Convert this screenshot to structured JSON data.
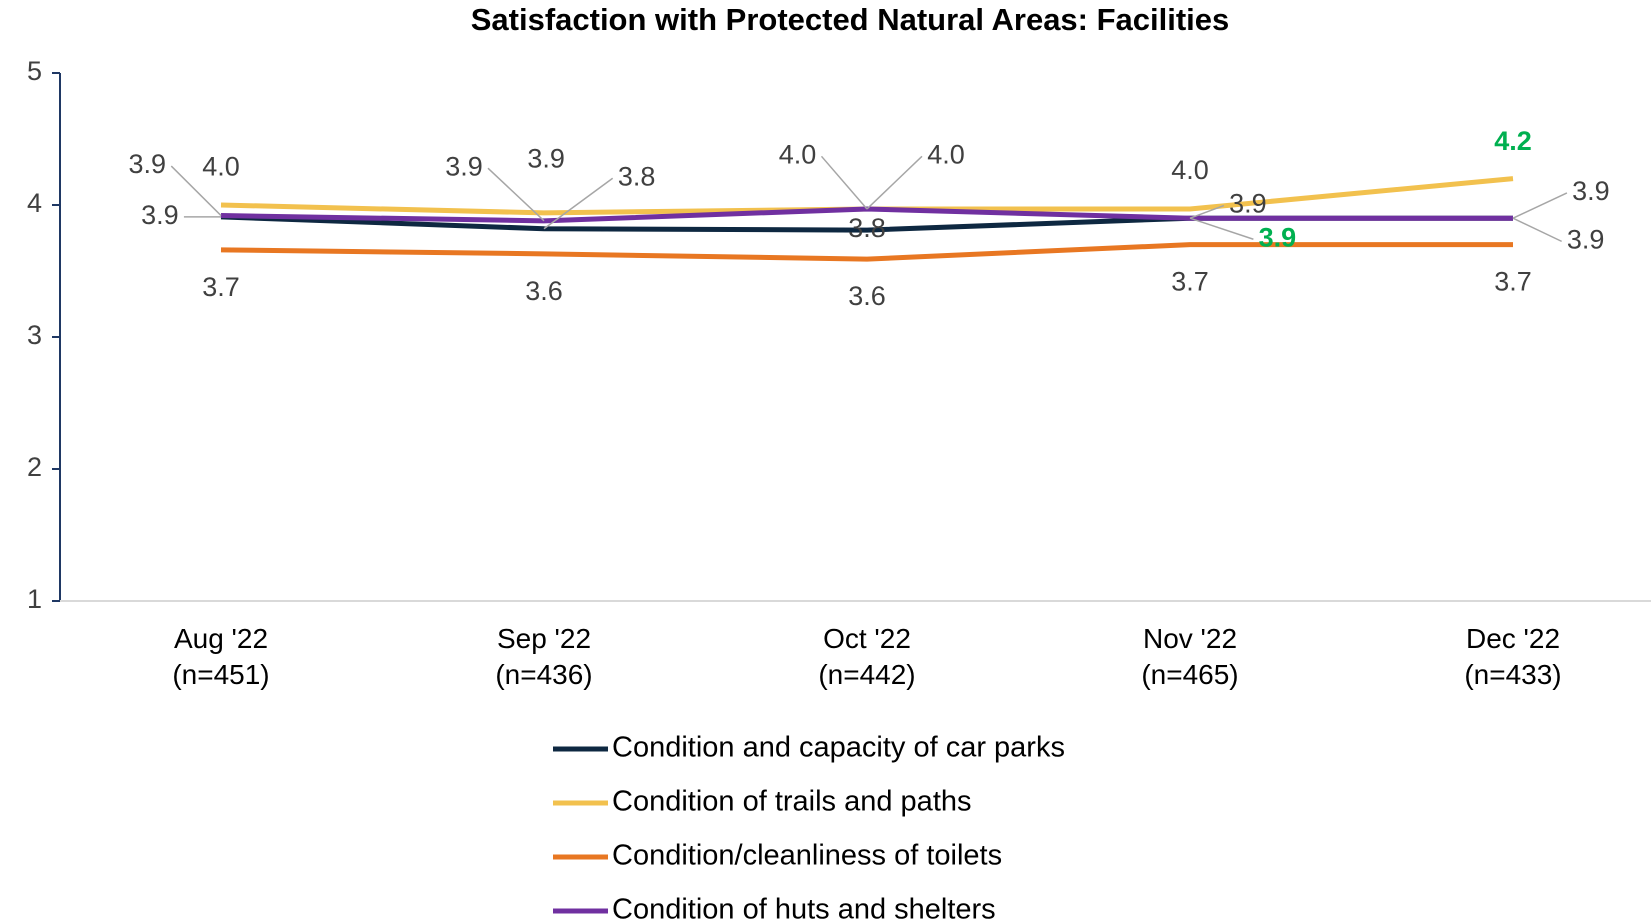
{
  "chart_data": {
    "type": "line",
    "title": "Satisfaction with Protected Natural Areas: Facilities",
    "categories": [
      "Aug '22\n(n=451)",
      "Sep '22\n(n=436)",
      "Oct '22\n(n=442)",
      "Nov '22\n(n=465)",
      "Dec '22\n(n=433)"
    ],
    "series": [
      {
        "name": "Condition and capacity of car parks",
        "color": "#0e2841",
        "values": [
          3.91,
          3.82,
          3.81,
          3.9,
          3.9
        ],
        "value_labels": [
          "3.9",
          "3.8",
          "3.8",
          "3.9",
          "3.9"
        ],
        "highlight": [
          3
        ]
      },
      {
        "name": "Condition of trails and paths",
        "color": "#f2c14e",
        "values": [
          4.0,
          3.94,
          3.97,
          3.97,
          4.2
        ],
        "value_labels": [
          "4.0",
          "3.9",
          "4.0",
          "4.0",
          "4.2"
        ],
        "highlight": [
          4
        ]
      },
      {
        "name": "Condition/cleanliness of toilets",
        "color": "#e87722",
        "values": [
          3.66,
          3.63,
          3.59,
          3.7,
          3.7
        ],
        "value_labels": [
          "3.7",
          "3.6",
          "3.6",
          "3.7",
          "3.7"
        ],
        "highlight": []
      },
      {
        "name": "Condition of huts and shelters",
        "color": "#7030a0",
        "values": [
          3.92,
          3.88,
          3.97,
          3.9,
          3.9
        ],
        "value_labels": [
          "3.9",
          "3.9",
          "4.0",
          "3.9",
          "3.9"
        ],
        "highlight": []
      }
    ],
    "highlight_color": "#00b050",
    "ylim": [
      1,
      5
    ],
    "yticks": [
      1,
      2,
      3,
      4,
      5
    ],
    "grid": false,
    "legend": "bottom"
  }
}
